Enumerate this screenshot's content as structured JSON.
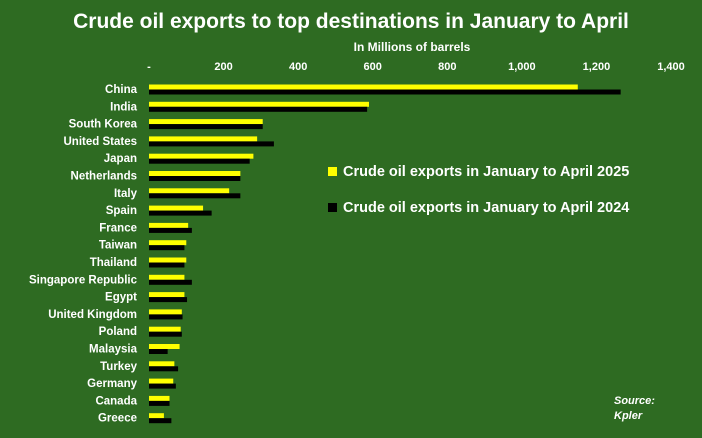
{
  "chart_data": {
    "type": "bar",
    "orientation": "horizontal",
    "title": "Crude oil exports to top destinations in January to April",
    "xlabel": "In Millions of barrels",
    "xlim": [
      0,
      1400
    ],
    "x_ticks": [
      "-",
      "200",
      "400",
      "600",
      "800",
      "1,000",
      "1,200",
      "1,400"
    ],
    "categories": [
      "China",
      "India",
      "South Korea",
      "United States",
      "Japan",
      "Netherlands",
      "Italy",
      "Spain",
      "France",
      "Taiwan",
      "Thailand",
      "Singapore Republic",
      "Egypt",
      "United Kingdom",
      "Poland",
      "Malaysia",
      "Turkey",
      "Germany",
      "Canada",
      "Greece"
    ],
    "series": [
      {
        "name": "Crude oil exports in January to April 2025",
        "color": "#ffff00",
        "values": [
          1150,
          590,
          305,
          290,
          280,
          245,
          215,
          145,
          105,
          100,
          100,
          95,
          95,
          88,
          85,
          82,
          68,
          65,
          55,
          40
        ]
      },
      {
        "name": "Crude oil exports in January to April 2024",
        "color": "#000000",
        "values": [
          1265,
          585,
          305,
          335,
          270,
          245,
          245,
          168,
          115,
          95,
          95,
          115,
          102,
          90,
          88,
          50,
          78,
          72,
          55,
          60
        ]
      }
    ],
    "legend_position": "center-right",
    "grid": false
  },
  "source": {
    "label": "Source:",
    "value": "Kpler"
  }
}
